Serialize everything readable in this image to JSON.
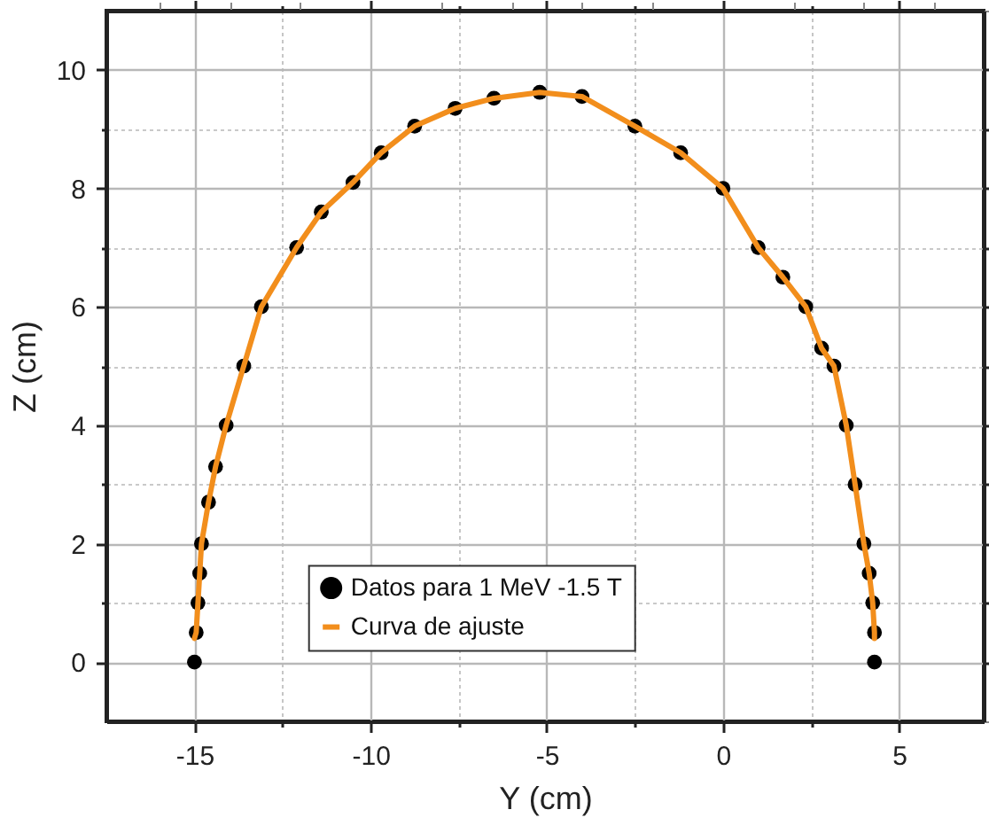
{
  "chart_data": {
    "type": "scatter",
    "xlabel": "Y (cm)",
    "ylabel": "Z (cm)",
    "xlim": [
      -17.5,
      7.4
    ],
    "ylim": [
      -1,
      11
    ],
    "xticks": [
      -15,
      -10,
      -5,
      0,
      5,
      {
        "value": -12.5,
        "label": null
      },
      {
        "value": -7.5,
        "label": null
      },
      {
        "value": -2.5,
        "label": null
      },
      {
        "value": 2.5,
        "label": null
      }
    ],
    "yticks": [
      0,
      2,
      4,
      6,
      8,
      10,
      {
        "value": 1,
        "label": null
      },
      {
        "value": 3,
        "label": null
      },
      {
        "value": 5,
        "label": null
      },
      {
        "value": 7,
        "label": null
      },
      {
        "value": 9,
        "label": null
      }
    ],
    "grid": true,
    "legend": "bottom",
    "series": [
      {
        "name": "Datos para 1 MeV -1.5 T",
        "marker": "circle",
        "color": "#000000",
        "x": [
          -15,
          -14.95,
          -14.9,
          -14.85,
          -14.8,
          -14.6,
          -14.4,
          -14.1,
          -13.6,
          -13.1,
          -12.1,
          -11.4,
          -10.5,
          -9.7,
          -8.75,
          -7.6,
          -6.5,
          -5.2,
          -4,
          -2.5,
          -1.2,
          0,
          1,
          1.7,
          2.35,
          2.8,
          3.15,
          3.5,
          3.75,
          4,
          4.15,
          4.25,
          4.3,
          4.3
        ],
        "values": [
          0,
          0.5,
          1,
          1.5,
          2,
          2.7,
          3.3,
          4,
          5,
          6,
          7,
          7.6,
          8.1,
          8.6,
          9.05,
          9.35,
          9.52,
          9.62,
          9.55,
          9.05,
          8.6,
          8,
          7,
          6.5,
          6,
          5.3,
          5,
          4,
          3,
          2,
          1.5,
          1,
          0.5,
          0
        ]
      },
      {
        "name": "Curva de ajuste",
        "type": "line",
        "marker": "none",
        "color": "#f28e1c",
        "x": [
          -15,
          -14.95,
          -14.9,
          -14.85,
          -14.8,
          -14.6,
          -14.4,
          -14.1,
          -13.6,
          -13.1,
          -12.1,
          -11.4,
          -10.5,
          -9.7,
          -8.75,
          -7.6,
          -6.5,
          -5.2,
          -4,
          -2.5,
          -1.2,
          0,
          1,
          1.7,
          2.35,
          2.8,
          3.15,
          3.5,
          3.75,
          4,
          4.15,
          4.25,
          4.3,
          4.3
        ],
        "values": [
          0.4,
          0.5,
          1,
          1.5,
          2,
          2.7,
          3.3,
          4,
          5,
          6,
          7,
          7.6,
          8.1,
          8.6,
          9.05,
          9.35,
          9.52,
          9.62,
          9.55,
          9.05,
          8.6,
          8,
          7,
          6.5,
          6,
          5.3,
          5,
          4,
          3,
          2,
          1.5,
          1,
          0.5,
          0.4
        ]
      }
    ]
  }
}
